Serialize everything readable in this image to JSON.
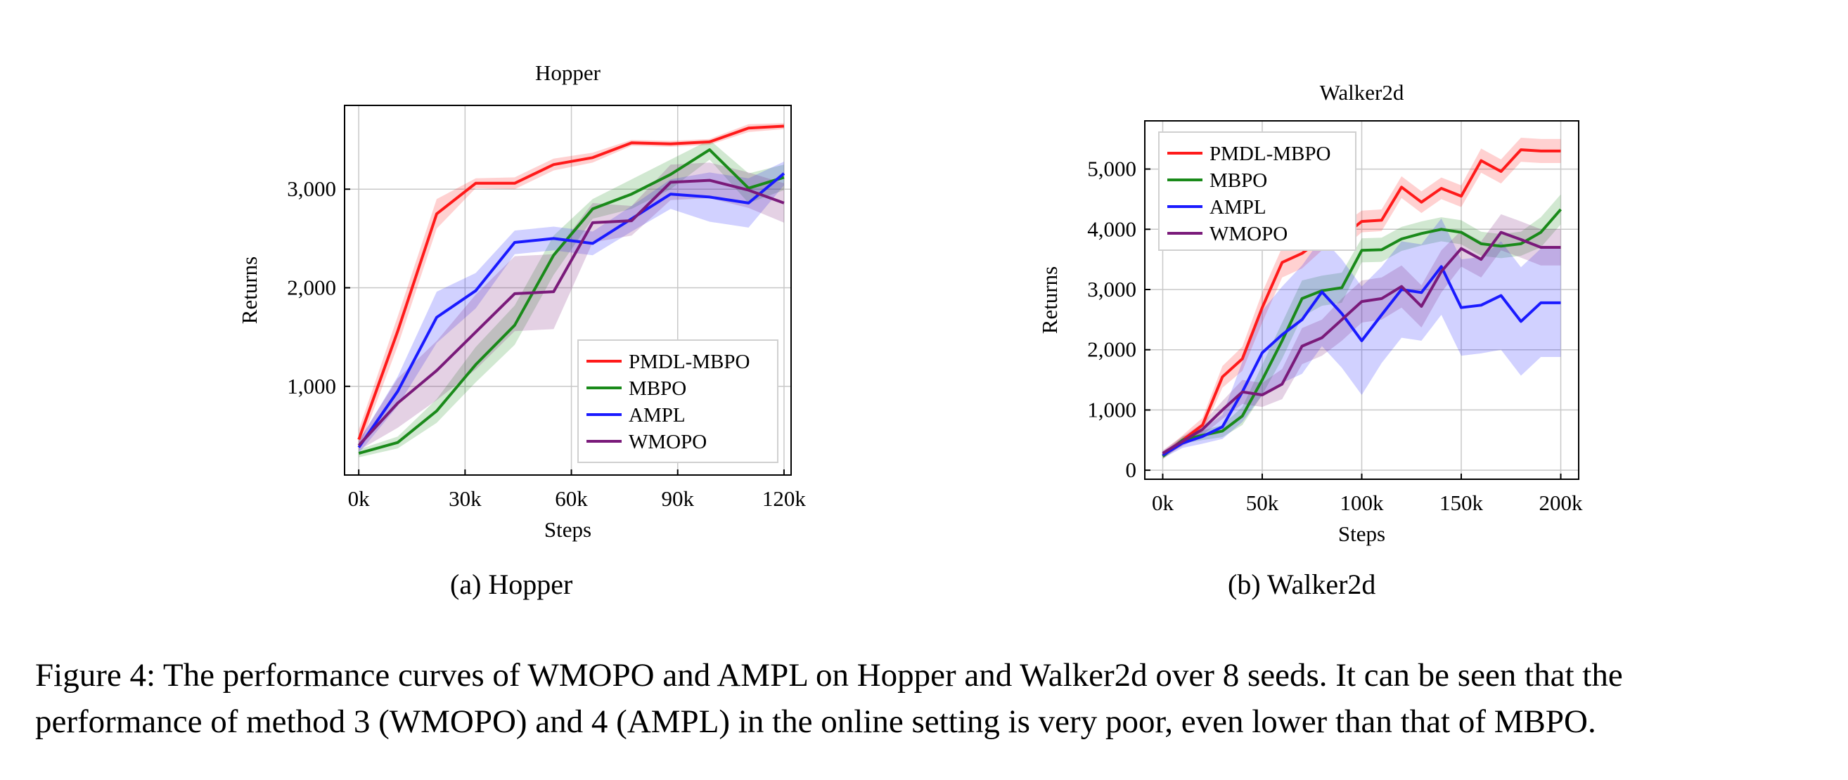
{
  "figure": {
    "caption_line1": "Figure 4: The performance curves of WMOPO and AMPL on Hopper and Walker2d over 8 seeds. It can be seen that the",
    "caption_line2": "performance of method 3 (WMOPO) and 4 (AMPL) in the online setting is very poor, even lower than that of MBPO.",
    "subcaption_a": "(a)  Hopper",
    "subcaption_b": "(b)  Walker2d"
  },
  "chart_data": [
    {
      "type": "line",
      "title": "Hopper",
      "xlabel": "Steps",
      "ylabel": "Returns",
      "xlim": [
        -4000,
        122000
      ],
      "ylim": [
        100,
        3850
      ],
      "xticks": [
        0,
        30000,
        60000,
        90000,
        120000
      ],
      "xticklabels": [
        "0k",
        "30k",
        "60k",
        "90k",
        "120k"
      ],
      "yticks": [
        1000,
        2000,
        3000
      ],
      "yticklabels": [
        "1,000",
        "2,000",
        "3,000"
      ],
      "grid": true,
      "legend_position": "bottom-right",
      "x": [
        0,
        11000,
        22000,
        33000,
        44000,
        55000,
        66000,
        77000,
        88000,
        99000,
        110000,
        120000
      ],
      "series": [
        {
          "name": "PMDL-MBPO",
          "color": "#ff1a1a",
          "values": [
            460,
            1560,
            2750,
            3060,
            3060,
            3250,
            3320,
            3470,
            3460,
            3480,
            3620,
            3640
          ],
          "band": [
            100,
            150,
            150,
            50,
            60,
            60,
            50,
            30,
            30,
            30,
            40,
            30
          ]
        },
        {
          "name": "MBPO",
          "color": "#1a8a1a",
          "values": [
            320,
            430,
            750,
            1220,
            1620,
            2330,
            2800,
            2950,
            3150,
            3400,
            3010,
            3120
          ],
          "band": [
            40,
            60,
            120,
            180,
            200,
            200,
            100,
            150,
            150,
            100,
            150,
            130
          ]
        },
        {
          "name": "AMPL",
          "color": "#1a1aff",
          "values": [
            380,
            950,
            1700,
            1970,
            2460,
            2500,
            2450,
            2700,
            2950,
            2920,
            2860,
            3160
          ],
          "band": [
            60,
            150,
            260,
            180,
            120,
            120,
            120,
            130,
            150,
            250,
            250,
            120
          ]
        },
        {
          "name": "WMOPO",
          "color": "#7a1a7a",
          "values": [
            400,
            830,
            1160,
            1550,
            1940,
            1960,
            2660,
            2680,
            3070,
            3090,
            2990,
            2860
          ],
          "band": [
            50,
            250,
            300,
            380,
            380,
            380,
            200,
            150,
            180,
            180,
            180,
            200
          ]
        }
      ]
    },
    {
      "type": "line",
      "title": "Walker2d",
      "xlabel": "Steps",
      "ylabel": "Returns",
      "xlim": [
        -9000,
        209000
      ],
      "ylim": [
        -150,
        5800
      ],
      "xticks": [
        0,
        50000,
        100000,
        150000,
        200000
      ],
      "xticklabels": [
        "0k",
        "50k",
        "100k",
        "150k",
        "200k"
      ],
      "yticks": [
        0,
        1000,
        2000,
        3000,
        4000,
        5000
      ],
      "yticklabels": [
        "0",
        "1,000",
        "2,000",
        "3,000",
        "4,000",
        "5,000"
      ],
      "grid": true,
      "legend_position": "top-left",
      "x": [
        0,
        10000,
        20000,
        30000,
        40000,
        50000,
        60000,
        70000,
        80000,
        90000,
        100000,
        110000,
        120000,
        130000,
        140000,
        150000,
        160000,
        170000,
        180000,
        190000,
        200000
      ],
      "series": [
        {
          "name": "PMDL-MBPO",
          "color": "#ff1a1a",
          "values": [
            250,
            500,
            750,
            1550,
            1850,
            2700,
            3450,
            3600,
            3850,
            3870,
            4130,
            4150,
            4700,
            4450,
            4680,
            4550,
            5140,
            4960,
            5320,
            5300,
            5300
          ],
          "band": [
            60,
            80,
            120,
            180,
            200,
            250,
            250,
            250,
            200,
            200,
            180,
            180,
            180,
            180,
            180,
            180,
            200,
            200,
            200,
            200,
            200
          ]
        },
        {
          "name": "MBPO",
          "color": "#1a8a1a",
          "values": [
            230,
            500,
            580,
            650,
            900,
            1500,
            2150,
            2850,
            2980,
            3030,
            3650,
            3660,
            3840,
            3930,
            4000,
            3950,
            3760,
            3720,
            3760,
            3950,
            4330
          ],
          "band": [
            50,
            60,
            80,
            100,
            150,
            250,
            300,
            300,
            250,
            250,
            200,
            200,
            200,
            200,
            200,
            200,
            200,
            200,
            200,
            250,
            250
          ]
        },
        {
          "name": "AMPL",
          "color": "#1a1aff",
          "values": [
            250,
            450,
            560,
            720,
            1300,
            1950,
            2250,
            2500,
            2960,
            2600,
            2150,
            2580,
            3000,
            2950,
            3380,
            2700,
            2740,
            2900,
            2470,
            2780,
            2780
          ],
          "band": [
            50,
            80,
            120,
            200,
            500,
            700,
            800,
            900,
            900,
            900,
            900,
            800,
            800,
            800,
            800,
            800,
            800,
            900,
            900,
            900,
            900
          ]
        },
        {
          "name": "WMOPO",
          "color": "#7a1a7a",
          "values": [
            280,
            480,
            680,
            1000,
            1300,
            1250,
            1430,
            2060,
            2200,
            2500,
            2800,
            2850,
            3050,
            2720,
            3300,
            3680,
            3500,
            3950,
            3830,
            3700,
            3700
          ],
          "band": [
            50,
            80,
            100,
            150,
            200,
            200,
            250,
            300,
            300,
            350,
            350,
            350,
            350,
            350,
            350,
            300,
            300,
            300,
            300,
            300,
            300
          ]
        }
      ]
    }
  ]
}
